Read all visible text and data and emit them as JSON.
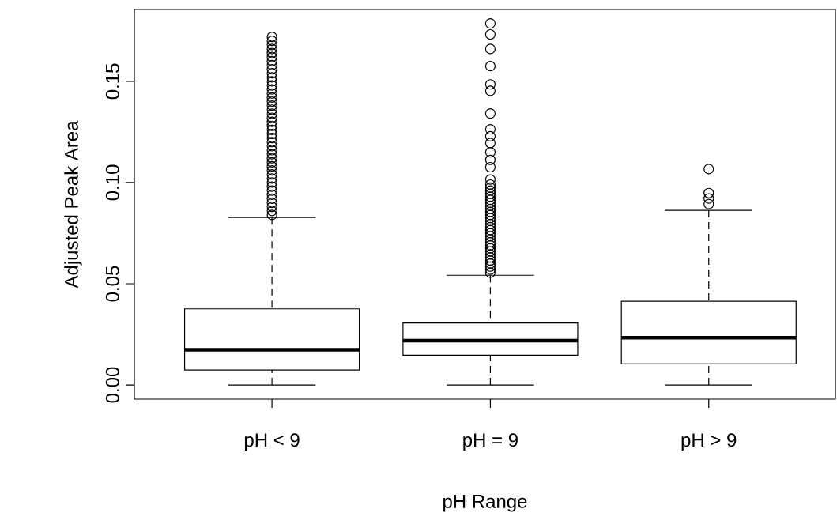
{
  "chart_data": {
    "type": "box",
    "categories": [
      "pH < 9",
      "pH = 9",
      "pH > 9"
    ],
    "xlabel": "pH Range",
    "ylabel": "Adjusted Peak Area",
    "ylim": [
      -0.007,
      0.1855
    ],
    "yticks": [
      {
        "value": 0,
        "label": "0.00"
      },
      {
        "value": 0.05,
        "label": "0.05"
      },
      {
        "value": 0.1,
        "label": "0.10"
      },
      {
        "value": 0.15,
        "label": "0.15"
      }
    ],
    "boxes": [
      {
        "low": 0,
        "q1": 0.0074,
        "median": 0.0174,
        "q3": 0.0376,
        "high": 0.0827,
        "outliers": [
          0.084,
          0.086,
          0.088,
          0.09,
          0.092,
          0.094,
          0.096,
          0.098,
          0.1,
          0.102,
          0.104,
          0.106,
          0.108,
          0.11,
          0.112,
          0.114,
          0.116,
          0.118,
          0.12,
          0.122,
          0.124,
          0.126,
          0.128,
          0.13,
          0.132,
          0.134,
          0.136,
          0.138,
          0.14,
          0.142,
          0.144,
          0.146,
          0.148,
          0.15,
          0.152,
          0.154,
          0.156,
          0.158,
          0.16,
          0.162,
          0.164,
          0.166,
          0.168,
          0.17,
          0.172
        ]
      },
      {
        "low": 0,
        "q1": 0.0147,
        "median": 0.0219,
        "q3": 0.0306,
        "high": 0.0542,
        "outliers": [
          0.0555,
          0.057,
          0.0585,
          0.06,
          0.0615,
          0.063,
          0.0645,
          0.066,
          0.0675,
          0.069,
          0.0705,
          0.072,
          0.0735,
          0.075,
          0.0765,
          0.078,
          0.0795,
          0.081,
          0.0825,
          0.084,
          0.0855,
          0.087,
          0.0885,
          0.09,
          0.0915,
          0.093,
          0.0945,
          0.096,
          0.0975,
          0.099,
          0.1015,
          0.1076,
          0.1112,
          0.115,
          0.1195,
          0.1229,
          0.1263,
          0.1341,
          0.1453,
          0.1485,
          0.1575,
          0.166,
          0.1732,
          0.1786
        ]
      },
      {
        "low": 0,
        "q1": 0.0104,
        "median": 0.0234,
        "q3": 0.0414,
        "high": 0.0863,
        "outliers": [
          0.0894,
          0.0921,
          0.0948,
          0.1067
        ]
      }
    ]
  }
}
